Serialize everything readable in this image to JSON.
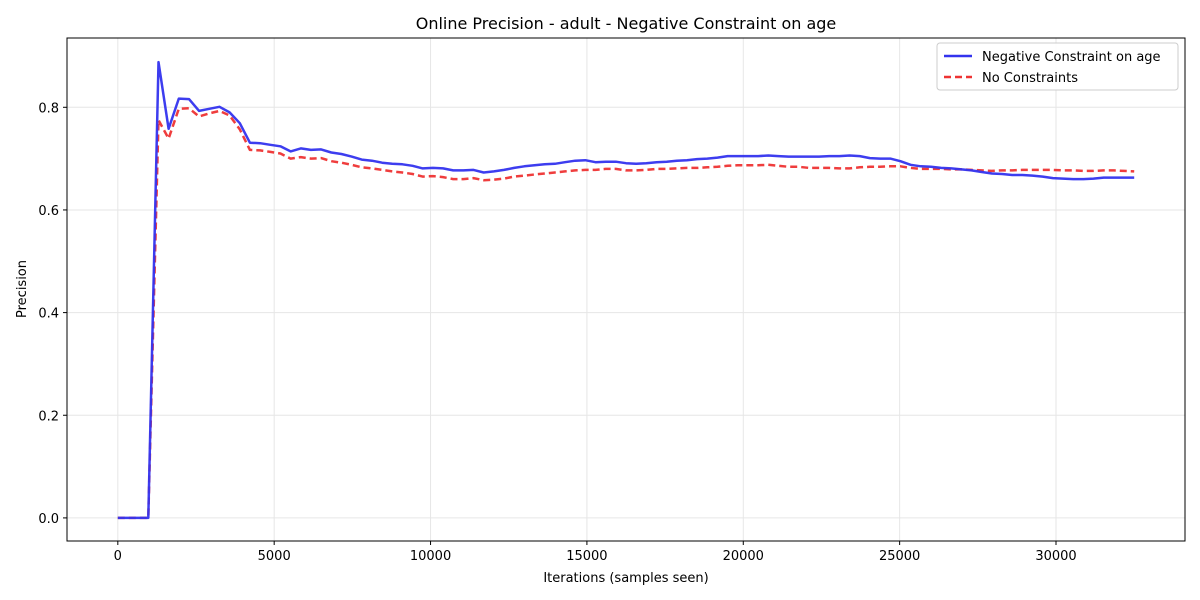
{
  "chart_data": {
    "type": "line",
    "title": "Online Precision - adult - Negative Constraint on age",
    "xlabel": "Iterations (samples seen)",
    "ylabel": "Precision",
    "xlim": [
      -1625,
      34125
    ],
    "ylim": [
      -0.045,
      0.935
    ],
    "xticks": [
      0,
      5000,
      10000,
      15000,
      20000,
      25000,
      30000
    ],
    "yticks": [
      0.0,
      0.2,
      0.4,
      0.6,
      0.8
    ],
    "xtick_labels": [
      "0",
      "5000",
      "10000",
      "15000",
      "20000",
      "25000",
      "30000"
    ],
    "ytick_labels": [
      "0.0",
      "0.2",
      "0.4",
      "0.6",
      "0.8"
    ],
    "grid": true,
    "legend": "top-right",
    "x": [
      0,
      325,
      650,
      975,
      1300,
      1625,
      1950,
      2275,
      2600,
      2925,
      3250,
      3575,
      3900,
      4225,
      4550,
      4875,
      5200,
      5525,
      5850,
      6175,
      6500,
      6825,
      7150,
      7475,
      7800,
      8125,
      8450,
      8775,
      9100,
      9425,
      9750,
      10075,
      10400,
      10725,
      11050,
      11375,
      11700,
      12025,
      12350,
      12675,
      13000,
      13325,
      13650,
      13975,
      14300,
      14625,
      14950,
      15275,
      15600,
      15925,
      16250,
      16575,
      16900,
      17225,
      17550,
      17875,
      18200,
      18525,
      18850,
      19175,
      19500,
      19825,
      20150,
      20475,
      20800,
      21125,
      21450,
      21775,
      22100,
      22425,
      22750,
      23075,
      23400,
      23725,
      24050,
      24375,
      24700,
      25025,
      25350,
      25675,
      26000,
      26325,
      26650,
      26975,
      27300,
      27625,
      27950,
      28275,
      28600,
      28925,
      29250,
      29575,
      29900,
      30225,
      30550,
      30875,
      31200,
      31525,
      31850,
      32175,
      32500
    ],
    "series": [
      {
        "name": "Negative Constraint on age",
        "color": "#3333ee",
        "dash": "solid",
        "values": [
          0,
          0,
          0,
          0,
          0.888,
          0.758,
          0.817,
          0.816,
          0.793,
          0.797,
          0.801,
          0.79,
          0.769,
          0.731,
          0.73,
          0.727,
          0.724,
          0.714,
          0.72,
          0.717,
          0.718,
          0.712,
          0.709,
          0.704,
          0.698,
          0.696,
          0.692,
          0.69,
          0.689,
          0.686,
          0.681,
          0.682,
          0.681,
          0.677,
          0.677,
          0.678,
          0.673,
          0.675,
          0.678,
          0.682,
          0.685,
          0.687,
          0.689,
          0.69,
          0.693,
          0.696,
          0.697,
          0.693,
          0.694,
          0.694,
          0.691,
          0.69,
          0.691,
          0.693,
          0.694,
          0.696,
          0.697,
          0.699,
          0.7,
          0.702,
          0.705,
          0.705,
          0.705,
          0.705,
          0.706,
          0.705,
          0.704,
          0.704,
          0.704,
          0.704,
          0.705,
          0.705,
          0.706,
          0.705,
          0.701,
          0.7,
          0.7,
          0.695,
          0.688,
          0.685,
          0.684,
          0.682,
          0.681,
          0.679,
          0.677,
          0.674,
          0.671,
          0.67,
          0.668,
          0.668,
          0.667,
          0.665,
          0.662,
          0.661,
          0.66,
          0.66,
          0.661,
          0.663,
          0.663,
          0.663,
          0.663
        ]
      },
      {
        "name": "No Constraints",
        "color": "#ee3333",
        "dash": "dashed",
        "values": [
          0,
          0,
          0,
          0,
          0.775,
          0.739,
          0.797,
          0.798,
          0.782,
          0.788,
          0.793,
          0.784,
          0.757,
          0.717,
          0.716,
          0.713,
          0.71,
          0.7,
          0.703,
          0.7,
          0.701,
          0.695,
          0.692,
          0.688,
          0.683,
          0.681,
          0.678,
          0.675,
          0.673,
          0.67,
          0.665,
          0.666,
          0.664,
          0.66,
          0.66,
          0.662,
          0.658,
          0.659,
          0.661,
          0.665,
          0.667,
          0.669,
          0.671,
          0.673,
          0.675,
          0.677,
          0.678,
          0.678,
          0.68,
          0.68,
          0.677,
          0.677,
          0.678,
          0.68,
          0.68,
          0.681,
          0.682,
          0.682,
          0.683,
          0.684,
          0.686,
          0.687,
          0.687,
          0.687,
          0.688,
          0.686,
          0.684,
          0.684,
          0.682,
          0.682,
          0.682,
          0.681,
          0.681,
          0.683,
          0.684,
          0.684,
          0.685,
          0.685,
          0.682,
          0.68,
          0.68,
          0.68,
          0.679,
          0.679,
          0.678,
          0.677,
          0.676,
          0.677,
          0.677,
          0.678,
          0.678,
          0.678,
          0.678,
          0.677,
          0.677,
          0.676,
          0.676,
          0.677,
          0.677,
          0.676,
          0.675
        ]
      }
    ]
  }
}
